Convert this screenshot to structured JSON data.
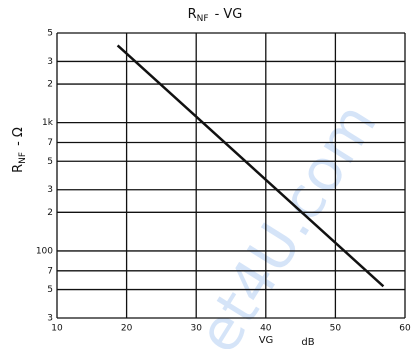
{
  "chart_data": {
    "type": "line",
    "title": [
      "R",
      "NF",
      "- VG"
    ],
    "y_label": [
      "R",
      "NF",
      "- Ω"
    ],
    "x_label": "VG",
    "x_unit": "dB",
    "watermark": "et4U.com",
    "x": [
      18.7,
      56.9
    ],
    "values": [
      4000,
      53
    ],
    "color": "#111111",
    "xlim": [
      10,
      60
    ],
    "xticks": [
      10,
      20,
      30,
      40,
      50,
      60
    ],
    "ylim": [
      30,
      5000
    ],
    "log_y": true,
    "grid": true,
    "yticks": [
      {
        "value": 5000,
        "label": "5"
      },
      {
        "value": 3000,
        "label": "3"
      },
      {
        "value": 2000,
        "label": "2"
      },
      {
        "value": 1000,
        "label": "1k"
      },
      {
        "value": 700,
        "label": "7"
      },
      {
        "value": 500,
        "label": "5"
      },
      {
        "value": 300,
        "label": "3"
      },
      {
        "value": 200,
        "label": "2"
      },
      100,
      {
        "value": 70,
        "label": "7"
      },
      {
        "value": 50,
        "label": "5"
      },
      {
        "value": 30,
        "label": "3"
      }
    ]
  }
}
